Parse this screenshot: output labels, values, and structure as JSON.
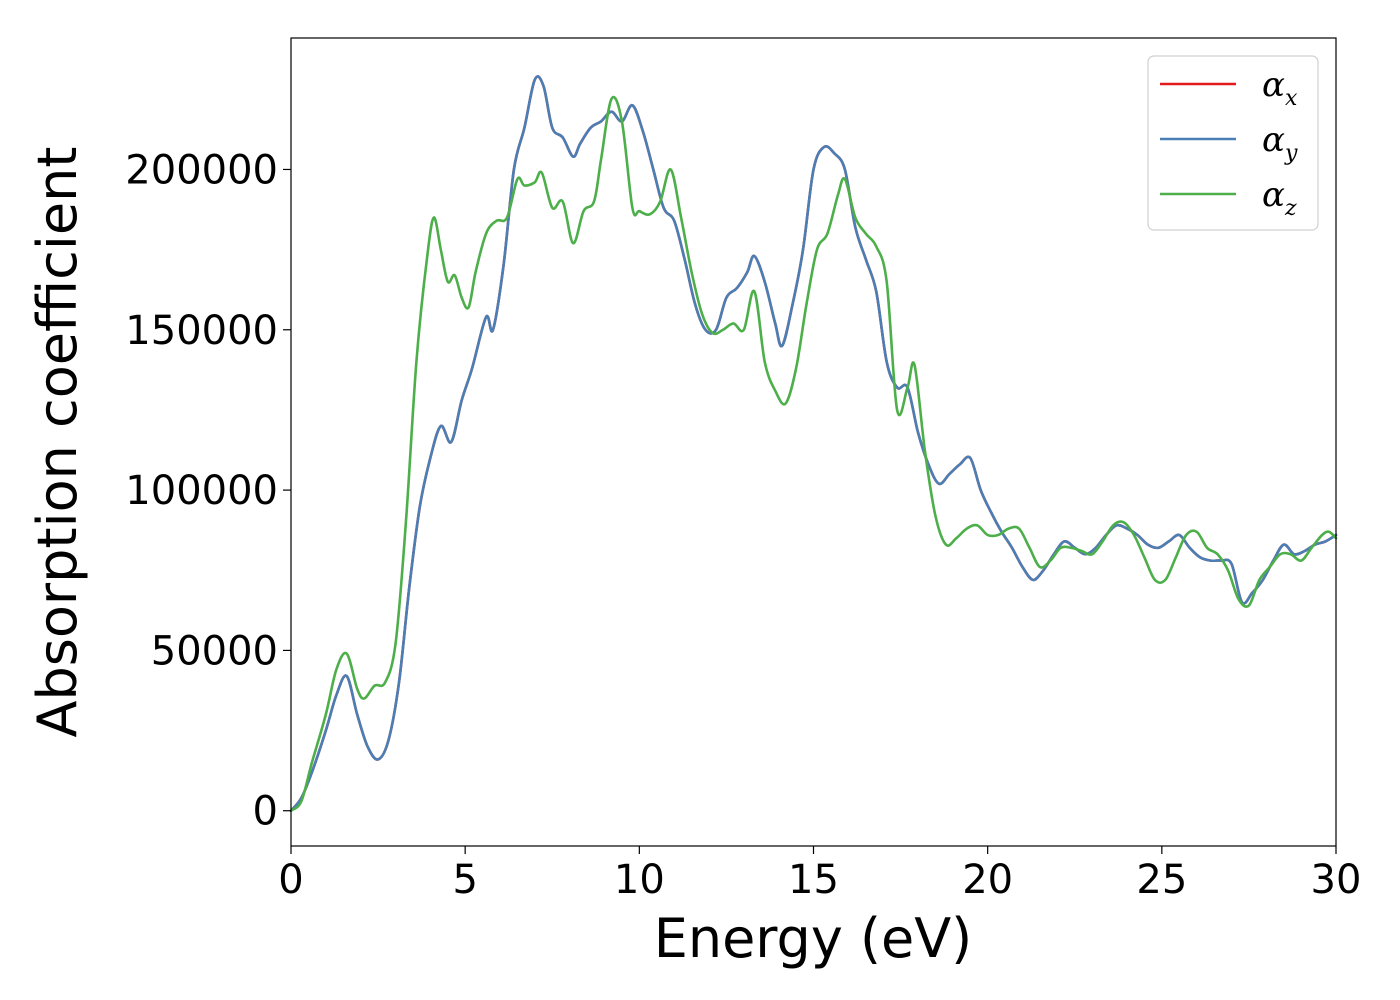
{
  "chart_data": {
    "type": "line",
    "xlabel": "Energy (eV)",
    "ylabel": "Absorption coefficient",
    "xlim": [
      0,
      30
    ],
    "ylim": [
      -11000,
      241000
    ],
    "xticks": [
      0,
      5,
      10,
      15,
      20,
      25,
      30
    ],
    "yticks": [
      0,
      50000,
      100000,
      150000,
      200000
    ],
    "grid": false,
    "legend_position": "top-right",
    "series": [
      {
        "name": "α_x",
        "legend_main": "α",
        "legend_sub": "x",
        "color": "#e41a1c",
        "x": [
          0,
          0.3,
          0.6,
          1.0,
          1.3,
          1.6,
          1.9,
          2.2,
          2.5,
          2.8,
          3.1,
          3.4,
          3.7,
          4.0,
          4.3,
          4.6,
          4.9,
          5.2,
          5.6,
          5.8,
          6.1,
          6.4,
          6.7,
          7.0,
          7.25,
          7.5,
          7.8,
          8.1,
          8.3,
          8.6,
          8.9,
          9.2,
          9.5,
          9.8,
          10.1,
          10.4,
          10.7,
          11.0,
          11.3,
          11.6,
          11.9,
          12.2,
          12.5,
          12.8,
          13.1,
          13.3,
          13.6,
          13.9,
          14.1,
          14.4,
          14.7,
          15.0,
          15.3,
          15.6,
          15.9,
          16.2,
          16.5,
          16.8,
          17.1,
          17.4,
          17.7,
          18.0,
          18.3,
          18.6,
          18.9,
          19.2,
          19.5,
          19.8,
          20.1,
          20.4,
          20.7,
          21.0,
          21.3,
          21.6,
          21.9,
          22.2,
          22.5,
          22.8,
          23.1,
          23.4,
          23.7,
          24.0,
          24.3,
          24.6,
          24.9,
          25.2,
          25.5,
          25.8,
          26.1,
          26.4,
          26.7,
          27.0,
          27.3,
          27.6,
          27.9,
          28.2,
          28.5,
          28.8,
          29.1,
          29.4,
          29.7,
          30.0
        ],
        "y": [
          0,
          4000,
          12000,
          25000,
          36000,
          42000,
          30000,
          20000,
          16000,
          22000,
          40000,
          70000,
          95000,
          110000,
          120000,
          115000,
          128000,
          138000,
          154000,
          150000,
          170000,
          200000,
          213000,
          228000,
          226000,
          213000,
          210000,
          204000,
          208000,
          213000,
          215000,
          218000,
          215000,
          220000,
          212000,
          200000,
          188000,
          184000,
          172000,
          158000,
          150000,
          150000,
          160000,
          163000,
          168000,
          173000,
          165000,
          152000,
          145000,
          158000,
          175000,
          200000,
          207000,
          205000,
          200000,
          182000,
          172000,
          162000,
          140000,
          132000,
          132000,
          118000,
          108000,
          102000,
          105000,
          108000,
          110000,
          100000,
          93000,
          87000,
          82000,
          76000,
          72000,
          75000,
          80000,
          84000,
          82000,
          80000,
          82000,
          86000,
          89000,
          88000,
          86000,
          83000,
          82000,
          84000,
          86000,
          82000,
          79000,
          78000,
          78000,
          77000,
          65000,
          68000,
          72000,
          78000,
          83000,
          80000,
          81000,
          83000,
          84000,
          86000
        ]
      },
      {
        "name": "α_y",
        "legend_main": "α",
        "legend_sub": "y",
        "color": "#4a7fb5",
        "x": [
          0,
          0.3,
          0.6,
          1.0,
          1.3,
          1.6,
          1.9,
          2.2,
          2.5,
          2.8,
          3.1,
          3.4,
          3.7,
          4.0,
          4.3,
          4.6,
          4.9,
          5.2,
          5.6,
          5.8,
          6.1,
          6.4,
          6.7,
          7.0,
          7.25,
          7.5,
          7.8,
          8.1,
          8.3,
          8.6,
          8.9,
          9.2,
          9.5,
          9.8,
          10.1,
          10.4,
          10.7,
          11.0,
          11.3,
          11.6,
          11.9,
          12.2,
          12.5,
          12.8,
          13.1,
          13.3,
          13.6,
          13.9,
          14.1,
          14.4,
          14.7,
          15.0,
          15.3,
          15.6,
          15.9,
          16.2,
          16.5,
          16.8,
          17.1,
          17.4,
          17.7,
          18.0,
          18.3,
          18.6,
          18.9,
          19.2,
          19.5,
          19.8,
          20.1,
          20.4,
          20.7,
          21.0,
          21.3,
          21.6,
          21.9,
          22.2,
          22.5,
          22.8,
          23.1,
          23.4,
          23.7,
          24.0,
          24.3,
          24.6,
          24.9,
          25.2,
          25.5,
          25.8,
          26.1,
          26.4,
          26.7,
          27.0,
          27.3,
          27.6,
          27.9,
          28.2,
          28.5,
          28.8,
          29.1,
          29.4,
          29.7,
          30.0
        ],
        "y": [
          0,
          4000,
          12000,
          25000,
          36000,
          42000,
          30000,
          20000,
          16000,
          22000,
          40000,
          70000,
          95000,
          110000,
          120000,
          115000,
          128000,
          138000,
          154000,
          150000,
          170000,
          200000,
          213000,
          228000,
          226000,
          213000,
          210000,
          204000,
          208000,
          213000,
          215000,
          218000,
          215000,
          220000,
          212000,
          200000,
          188000,
          184000,
          172000,
          158000,
          150000,
          150000,
          160000,
          163000,
          168000,
          173000,
          165000,
          152000,
          145000,
          158000,
          175000,
          200000,
          207000,
          205000,
          200000,
          182000,
          172000,
          162000,
          140000,
          132000,
          132000,
          118000,
          108000,
          102000,
          105000,
          108000,
          110000,
          100000,
          93000,
          87000,
          82000,
          76000,
          72000,
          75000,
          80000,
          84000,
          82000,
          80000,
          82000,
          86000,
          89000,
          88000,
          86000,
          83000,
          82000,
          84000,
          86000,
          82000,
          79000,
          78000,
          78000,
          77000,
          65000,
          68000,
          72000,
          78000,
          83000,
          80000,
          81000,
          83000,
          84000,
          86000
        ]
      },
      {
        "name": "α_z",
        "legend_main": "α",
        "legend_sub": "z",
        "color": "#4daf4a",
        "x": [
          0,
          0.3,
          0.6,
          1.0,
          1.3,
          1.6,
          1.9,
          2.1,
          2.4,
          2.7,
          3.0,
          3.3,
          3.6,
          3.9,
          4.1,
          4.3,
          4.5,
          4.7,
          4.9,
          5.1,
          5.3,
          5.6,
          5.9,
          6.2,
          6.5,
          6.7,
          7.0,
          7.2,
          7.5,
          7.8,
          8.1,
          8.4,
          8.7,
          8.9,
          9.2,
          9.5,
          9.8,
          10.0,
          10.3,
          10.6,
          10.9,
          11.2,
          11.5,
          11.8,
          12.1,
          12.4,
          12.7,
          13.0,
          13.3,
          13.6,
          13.9,
          14.2,
          14.5,
          14.8,
          15.1,
          15.4,
          15.7,
          15.9,
          16.2,
          16.5,
          16.8,
          17.1,
          17.4,
          17.7,
          17.9,
          18.2,
          18.5,
          18.8,
          19.1,
          19.4,
          19.7,
          20.0,
          20.3,
          20.6,
          20.9,
          21.2,
          21.5,
          21.8,
          22.1,
          22.4,
          22.7,
          23.0,
          23.3,
          23.6,
          23.9,
          24.2,
          24.5,
          24.8,
          25.1,
          25.4,
          25.7,
          26.0,
          26.3,
          26.6,
          26.9,
          27.2,
          27.5,
          27.8,
          28.1,
          28.4,
          28.7,
          29.0,
          29.3,
          29.6,
          29.8,
          30.0
        ],
        "y": [
          0,
          3000,
          15000,
          30000,
          44000,
          49000,
          38000,
          35000,
          39000,
          40000,
          52000,
          90000,
          140000,
          172000,
          185000,
          175000,
          165000,
          167000,
          160000,
          157000,
          168000,
          180000,
          184000,
          185000,
          197000,
          195000,
          196000,
          199000,
          188000,
          190000,
          177000,
          187000,
          190000,
          203000,
          222000,
          215000,
          188000,
          187000,
          186000,
          190000,
          200000,
          185000,
          168000,
          155000,
          149000,
          150000,
          152000,
          150000,
          162000,
          140000,
          131000,
          127000,
          138000,
          158000,
          175000,
          180000,
          192000,
          197000,
          185000,
          180000,
          176000,
          165000,
          125000,
          132000,
          139000,
          112000,
          92000,
          83000,
          85000,
          88000,
          89000,
          86000,
          86000,
          88000,
          88000,
          82000,
          76000,
          78000,
          82000,
          82000,
          81000,
          80000,
          84000,
          89000,
          90000,
          86000,
          79000,
          72000,
          72000,
          79000,
          86000,
          87000,
          82000,
          80000,
          75000,
          66000,
          64000,
          72000,
          76000,
          80000,
          80000,
          78000,
          82000,
          86000,
          87000,
          85000
        ]
      }
    ]
  }
}
